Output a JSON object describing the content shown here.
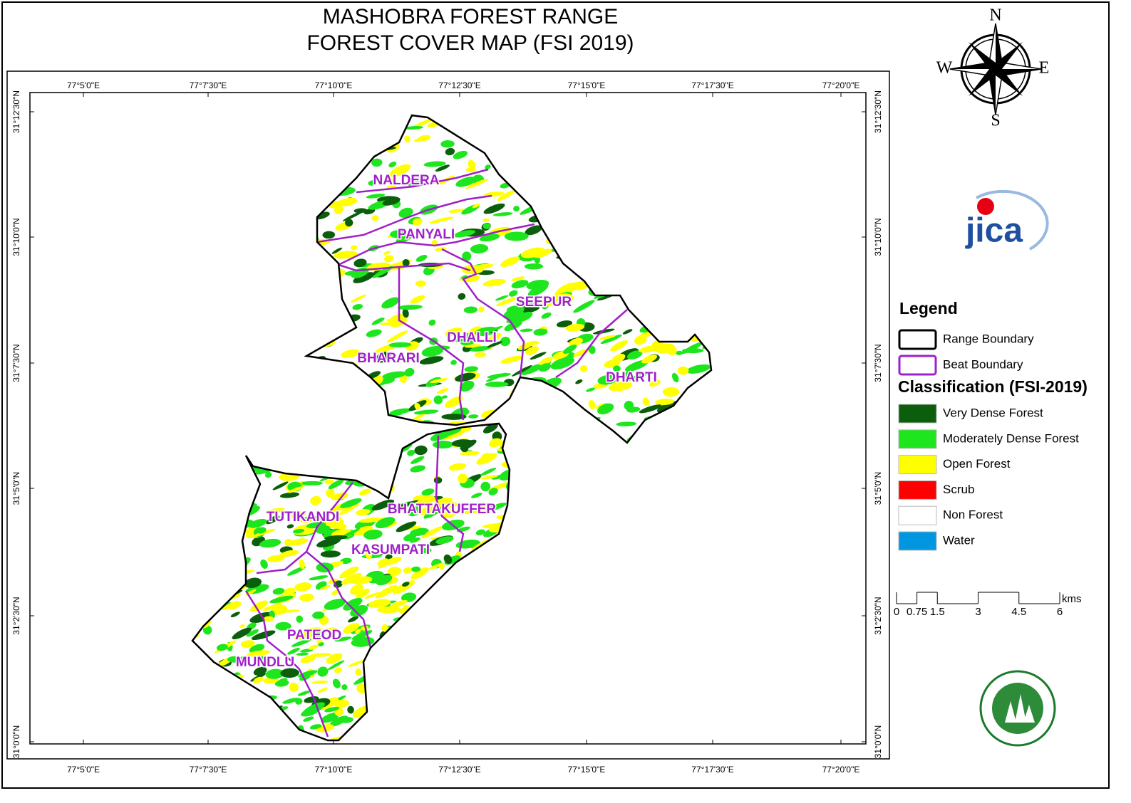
{
  "header": {
    "title": [
      "MASHOBRA FOREST RANGE",
      "FOREST COVER MAP (FSI 2019)"
    ]
  },
  "compass": {
    "n": "N",
    "e": "E",
    "s": "S",
    "w": "W"
  },
  "logos": {
    "jica": "jica"
  },
  "graticule": {
    "longitudes": [
      "77°5'0\"E",
      "77°7'30\"E",
      "77°10'0\"E",
      "77°12'30\"E",
      "77°15'0\"E",
      "77°17'30\"E",
      "77°20'0\"E"
    ],
    "latitudes": [
      "31°12'30\"N",
      "31°10'0\"N",
      "31°7'30\"N",
      "31°5'0\"N",
      "31°2'30\"N",
      "31°0'0\"N"
    ]
  },
  "beats": [
    "NALDERA",
    "PANYALI",
    "SEEPUR",
    "DHALLI",
    "BHARARI",
    "DHARTI",
    "BHATTAKUFFER",
    "TUTIKANDI",
    "KASUMPATI",
    "PATEOD",
    "MUNDLU"
  ],
  "legend": {
    "title": "Legend",
    "boundaries": [
      {
        "label": "Range Boundary",
        "color": "#000000"
      },
      {
        "label": "Beat Boundary",
        "color": "#a020c8"
      }
    ],
    "classification_title": "Classification (FSI-2019)",
    "classes": [
      {
        "label": "Very Dense Forest",
        "color": "#0b5e0b"
      },
      {
        "label": "Moderately Dense Forest",
        "color": "#1ee61e"
      },
      {
        "label": "Open Forest",
        "color": "#ffff00"
      },
      {
        "label": "Scrub",
        "color": "#ff0000"
      },
      {
        "label": "Non Forest",
        "color": "#ffffff"
      },
      {
        "label": "Water",
        "color": "#0096e0"
      }
    ]
  },
  "scale_bar": {
    "ticks": [
      0,
      0.75,
      1.5,
      3,
      4.5,
      6
    ],
    "unit": "kms"
  }
}
